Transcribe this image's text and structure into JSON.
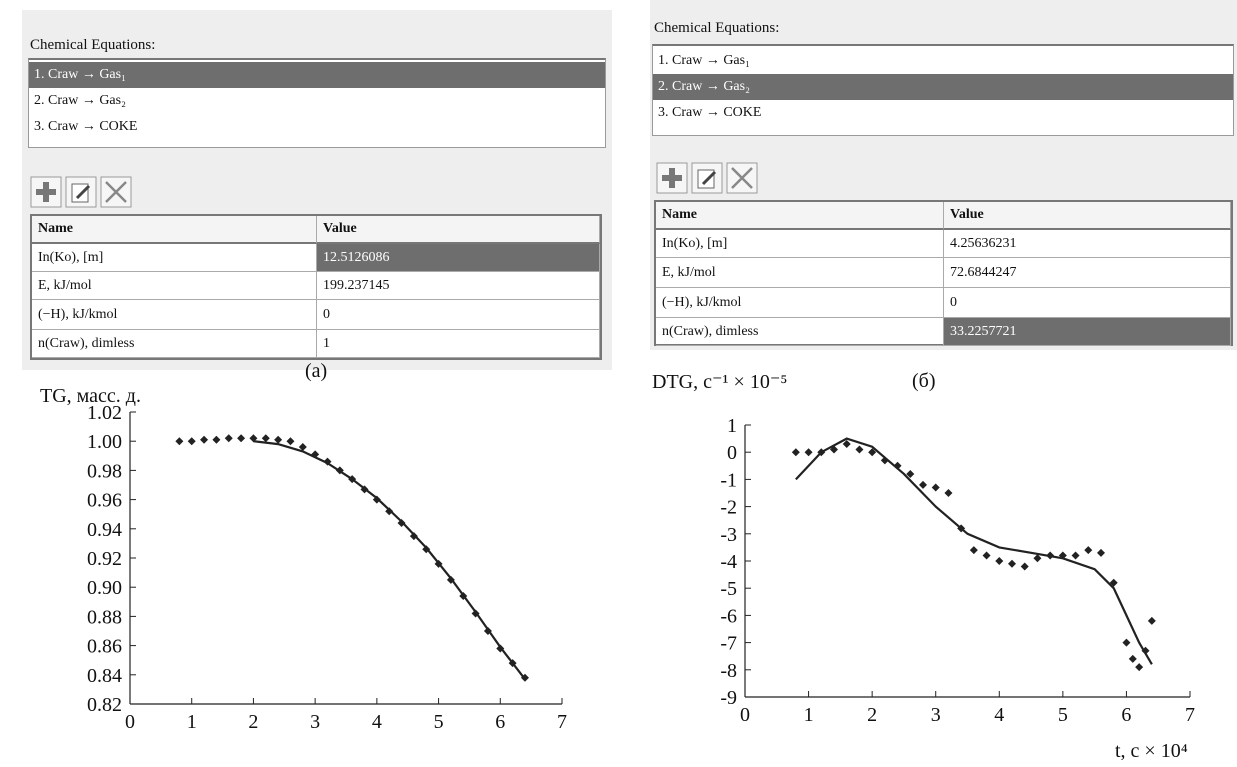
{
  "panels": [
    {
      "caption": "(a)",
      "heading": "Chemical Equations:",
      "equations": [
        "1. Craw → Gas₁",
        "2. Craw → Gas₂",
        "3. Craw → COKE"
      ],
      "selected_equation": 0,
      "table": {
        "header": [
          "Name",
          "Value"
        ],
        "rows": [
          [
            "In(Ko), [m]",
            "12.5126086"
          ],
          [
            "E, kJ/mol",
            "199.237145"
          ],
          [
            "(−H), kJ/kmol",
            "0"
          ],
          [
            "n(Craw), dimless",
            "1"
          ]
        ],
        "selected_cell": [
          0,
          1
        ]
      }
    },
    {
      "caption": "(б)",
      "heading": "Chemical Equations:",
      "equations": [
        "1. Craw → Gas₁",
        "2. Craw → Gas₂",
        "3. Craw → COKE"
      ],
      "selected_equation": 1,
      "table": {
        "header": [
          "Name",
          "Value"
        ],
        "rows": [
          [
            "In(Ko), [m]",
            "4.25636231"
          ],
          [
            "E, kJ/mol",
            "72.6844247"
          ],
          [
            "(−H), kJ/kmol",
            "0"
          ],
          [
            "n(Craw), dimless",
            "33.2257721"
          ]
        ],
        "selected_cell": [
          3,
          1
        ]
      }
    }
  ],
  "chart_data": [
    {
      "type": "line",
      "y_label": "TG, масс. д.",
      "xlim": [
        0,
        7
      ],
      "xticks": [
        0,
        1,
        2,
        3,
        4,
        5,
        6,
        7
      ],
      "ylim": [
        0.82,
        1.02
      ],
      "yticks": [
        0.82,
        0.84,
        0.86,
        0.88,
        {
          "value": 0.9,
          "label": "0.90"
        },
        0.92,
        0.94,
        0.96,
        0.98,
        {
          "value": 1,
          "label": "1.00"
        },
        1.02
      ],
      "series": [
        {
          "mode": "markers",
          "color": "#222",
          "x": [
            0.8,
            1.0,
            1.2,
            1.4,
            1.6,
            1.8,
            2.0,
            2.2,
            2.4,
            2.6,
            2.8,
            3.0,
            3.2,
            3.4,
            3.6,
            3.8,
            4.0,
            4.2,
            4.4,
            4.6,
            4.8,
            5.0,
            5.2,
            5.4,
            5.6,
            5.8,
            6.0,
            6.2,
            6.4
          ],
          "values": [
            1.0,
            1.0,
            1.001,
            1.001,
            1.002,
            1.002,
            1.002,
            1.002,
            1.001,
            1.0,
            0.996,
            0.991,
            0.986,
            0.98,
            0.974,
            0.967,
            0.96,
            0.952,
            0.944,
            0.935,
            0.926,
            0.916,
            0.905,
            0.894,
            0.882,
            0.87,
            0.858,
            0.848,
            0.838
          ]
        },
        {
          "mode": "line",
          "color": "#222",
          "x": [
            2.0,
            2.4,
            2.8,
            3.2,
            3.6,
            4.0,
            4.4,
            4.8,
            5.2,
            5.6,
            6.0,
            6.4
          ],
          "values": [
            1.0,
            0.998,
            0.993,
            0.985,
            0.974,
            0.961,
            0.945,
            0.927,
            0.906,
            0.883,
            0.859,
            0.837
          ]
        }
      ]
    },
    {
      "type": "line",
      "y_label": "DTG, с⁻¹ × 10⁻⁵",
      "x_label": "t, с × 10⁴",
      "xlim": [
        0,
        7
      ],
      "xticks": [
        0,
        1,
        2,
        3,
        4,
        5,
        6,
        7
      ],
      "ylim": [
        -9,
        1
      ],
      "yticks": [
        -9,
        -8,
        -7,
        -6,
        -5,
        -4,
        -3,
        -2,
        -1,
        0,
        1
      ],
      "series": [
        {
          "mode": "markers",
          "color": "#222",
          "x": [
            0.8,
            1.0,
            1.2,
            1.4,
            1.6,
            1.8,
            2.0,
            2.2,
            2.4,
            2.6,
            2.8,
            3.0,
            3.2,
            3.4,
            3.6,
            3.8,
            4.0,
            4.2,
            4.4,
            4.6,
            4.8,
            5.0,
            5.2,
            5.4,
            5.6,
            5.8,
            6.0,
            6.1,
            6.2,
            6.3,
            6.4
          ],
          "values": [
            0,
            0,
            0,
            0.1,
            0.3,
            0.1,
            0,
            -0.3,
            -0.5,
            -0.8,
            -1.2,
            -1.3,
            -1.5,
            -2.8,
            -3.6,
            -3.8,
            -4.0,
            -4.1,
            -4.2,
            -3.9,
            -3.8,
            -3.8,
            -3.8,
            -3.6,
            -3.7,
            -4.8,
            -7.0,
            -7.6,
            -7.9,
            -7.3,
            -6.2
          ]
        },
        {
          "mode": "line",
          "color": "#222",
          "x": [
            0.8,
            1.2,
            1.6,
            2.0,
            2.5,
            3.0,
            3.5,
            4.0,
            4.5,
            5.0,
            5.5,
            5.8,
            6.0,
            6.2,
            6.4
          ],
          "values": [
            -1,
            0,
            0.5,
            0.2,
            -0.8,
            -2.0,
            -3.0,
            -3.5,
            -3.7,
            -3.9,
            -4.3,
            -5.0,
            -6.0,
            -7.0,
            -7.8
          ]
        }
      ]
    }
  ]
}
